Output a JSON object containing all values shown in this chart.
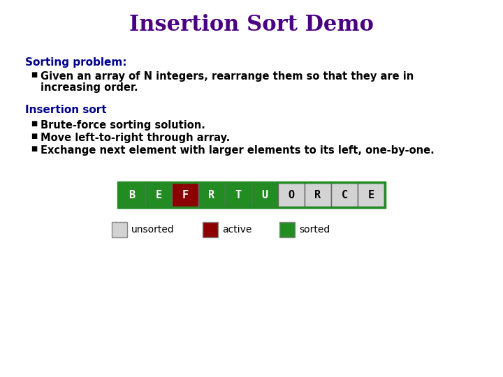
{
  "title": "Insertion Sort Demo",
  "title_color": "#4B0082",
  "title_fontsize": 22,
  "bg_color": "#ffffff",
  "section1_header": "Sorting problem:",
  "section1_color": "#00008B",
  "section1_fontsize": 11,
  "section1_bullet_line1": "Given an array of N integers, rearrange them so that they are in",
  "section1_bullet_line2": "increasing order.",
  "section2_header": "Insertion sort",
  "section2_color": "#00008B",
  "section2_fontsize": 11,
  "section2_bullets": [
    "Brute-force sorting solution.",
    "Move left-to-right through array.",
    "Exchange next element with larger elements to its left, one-by-one."
  ],
  "bullet_color": "#000000",
  "bullet_fontsize": 10.5,
  "array_letters": [
    "B",
    "E",
    "F",
    "R",
    "T",
    "U",
    "O",
    "R",
    "C",
    "E"
  ],
  "array_colors": [
    "#228B22",
    "#228B22",
    "#8B0000",
    "#228B22",
    "#228B22",
    "#228B22",
    "#D3D3D3",
    "#D3D3D3",
    "#D3D3D3",
    "#D3D3D3"
  ],
  "array_text_colors": [
    "#ffffff",
    "#ffffff",
    "#ffffff",
    "#ffffff",
    "#ffffff",
    "#ffffff",
    "#000000",
    "#000000",
    "#000000",
    "#000000"
  ],
  "legend_items": [
    {
      "label": "unsorted",
      "color": "#D3D3D3"
    },
    {
      "label": "active",
      "color": "#8B0000"
    },
    {
      "label": "sorted",
      "color": "#228B22"
    }
  ],
  "outer_border_color": "#228B22"
}
